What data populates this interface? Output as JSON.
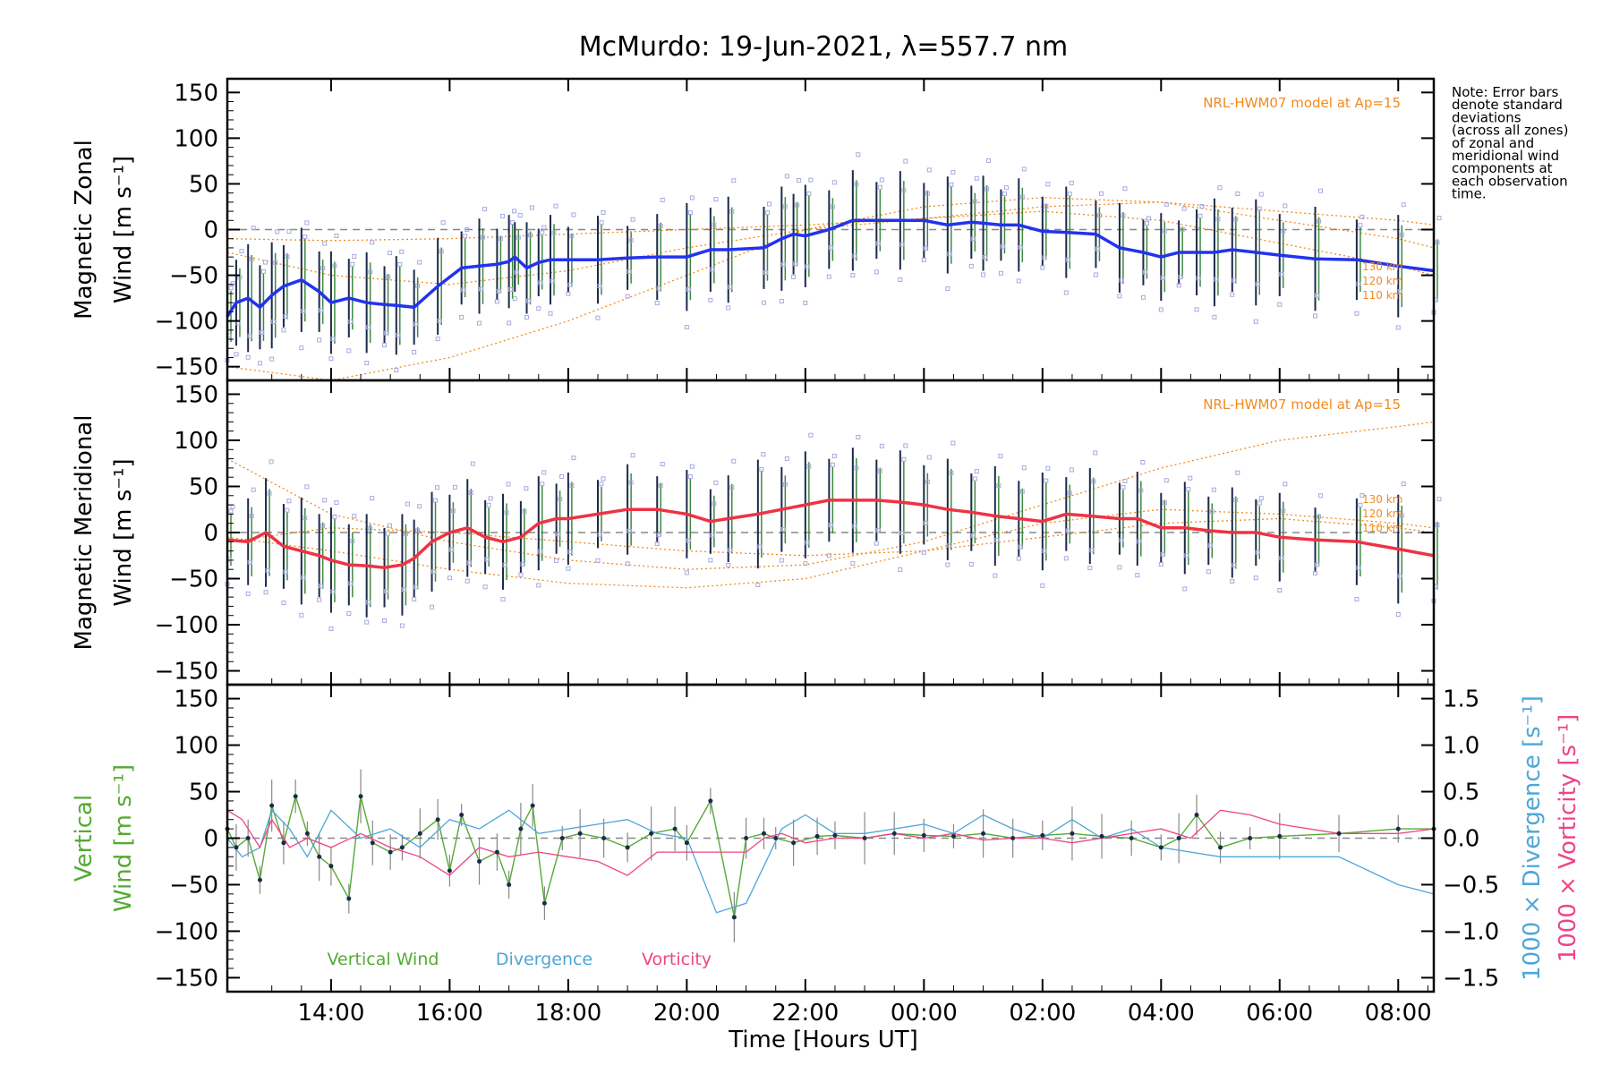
{
  "colors": {
    "zonal": "#2233ee",
    "meridional": "#ee3344",
    "vertical": "#55aa33",
    "divergence": "#4ea6d8",
    "vorticity": "#ee4488",
    "model": "#f28a1e",
    "zone_points": "#a8a8e0",
    "error_bar": "#1c2a4a"
  },
  "chart_data": {
    "type": "line",
    "title": "McMurdo: 19-Jun-2021, λ=557.7 nm",
    "xlabel": "Time [Hours UT]",
    "x_unit": "hours since 12:00 UT",
    "xlim": [
      0.25,
      20.6
    ],
    "x_ticks": [
      2,
      4,
      6,
      8,
      10,
      12,
      14,
      16,
      18,
      20
    ],
    "x_tick_labels": [
      "14:00",
      "16:00",
      "18:00",
      "20:00",
      "22:00",
      "00:00",
      "02:00",
      "04:00",
      "06:00",
      "08:00"
    ],
    "y_ticks": [
      -150,
      -100,
      -50,
      0,
      50,
      100,
      150
    ],
    "y_tick_labels": [
      "−150",
      "−100",
      "−50",
      "0",
      "50",
      "100",
      "150"
    ],
    "note": [
      "Note: Error bars",
      "denote standard",
      "deviations",
      "(across all zones)",
      "of zonal and",
      "meridional wind",
      "components at",
      "each observation",
      "time."
    ],
    "panels": [
      {
        "name": "zonal",
        "ylabel_line1": "Magnetic Zonal",
        "ylabel_line2": "Wind [m s⁻¹]",
        "ylim": [
          -165,
          165
        ],
        "model_label": "NRL-HWM07 model at Ap=15",
        "model_altitudes": [
          "130 km",
          "120 km",
          "110 km"
        ],
        "series": [
          {
            "name": "Magnetic Zonal Wind",
            "x": [
              0.25,
              0.4,
              0.6,
              0.8,
              1.0,
              1.2,
              1.5,
              1.8,
              2.0,
              2.3,
              2.6,
              2.9,
              3.1,
              3.4,
              3.8,
              4.2,
              4.5,
              4.8,
              5.0,
              5.1,
              5.3,
              5.5,
              5.7,
              6.0,
              6.5,
              7.0,
              7.5,
              8.0,
              8.4,
              8.7,
              9.3,
              9.6,
              9.8,
              10.0,
              10.4,
              10.8,
              11.2,
              11.6,
              12.0,
              12.4,
              12.8,
              13.0,
              13.3,
              13.6,
              14.0,
              14.4,
              14.9,
              15.3,
              15.7,
              16.0,
              16.3,
              16.6,
              16.9,
              17.2,
              17.6,
              18.0,
              18.6,
              19.3,
              20.0,
              20.6
            ],
            "y": [
              -95,
              -80,
              -75,
              -85,
              -72,
              -62,
              -55,
              -68,
              -80,
              -75,
              -80,
              -82,
              -83,
              -85,
              -62,
              -42,
              -40,
              -38,
              -35,
              -30,
              -42,
              -36,
              -33,
              -33,
              -33,
              -31,
              -30,
              -30,
              -22,
              -22,
              -20,
              -10,
              -5,
              -7,
              0,
              10,
              10,
              10,
              10,
              5,
              8,
              7,
              5,
              5,
              -2,
              -3,
              -5,
              -20,
              -25,
              -30,
              -25,
              -25,
              -25,
              -22,
              -25,
              -28,
              -32,
              -33,
              -40,
              -45
            ]
          },
          {
            "name": "NRL-HWM07 130 km",
            "x": [
              0.25,
              2,
              4,
              6,
              8,
              10,
              12,
              14,
              16,
              18,
              20,
              20.6
            ],
            "y": [
              -10,
              -12,
              -10,
              -5,
              0,
              5,
              12,
              25,
              30,
              20,
              10,
              5
            ]
          },
          {
            "name": "NRL-HWM07 120 km",
            "x": [
              0.25,
              2,
              4,
              6,
              8,
              10,
              12,
              14,
              16,
              18,
              20,
              20.6
            ],
            "y": [
              -25,
              -50,
              -60,
              -45,
              -20,
              0,
              12,
              20,
              10,
              -15,
              -40,
              -50
            ]
          },
          {
            "name": "NRL-HWM07 110 km",
            "x": [
              0.25,
              2,
              4,
              6,
              8,
              10,
              12,
              14,
              16,
              18,
              20,
              20.6
            ],
            "y": [
              -150,
              -165,
              -140,
              -100,
              -50,
              0,
              25,
              35,
              30,
              10,
              -10,
              -20
            ]
          }
        ]
      },
      {
        "name": "meridional",
        "ylabel_line1": "Magnetic Meridional",
        "ylabel_line2": "Wind [m s⁻¹]",
        "ylim": [
          -165,
          165
        ],
        "model_label": "NRL-HWM07 model at Ap=15",
        "model_altitudes": [
          "130 km",
          "120 km",
          "110 km"
        ],
        "series": [
          {
            "name": "Magnetic Meridional Wind",
            "x": [
              0.25,
              0.6,
              0.9,
              1.2,
              1.5,
              1.8,
              2.0,
              2.3,
              2.6,
              2.9,
              3.2,
              3.4,
              3.7,
              4.0,
              4.3,
              4.6,
              4.9,
              5.2,
              5.5,
              5.8,
              6.0,
              6.5,
              7.0,
              7.5,
              8.0,
              8.4,
              8.7,
              9.2,
              9.6,
              10.0,
              10.4,
              10.8,
              11.2,
              11.6,
              12.0,
              12.4,
              12.8,
              13.2,
              13.6,
              14.0,
              14.4,
              14.8,
              15.3,
              15.6,
              16.0,
              16.4,
              16.8,
              17.2,
              17.6,
              18.0,
              18.6,
              19.3,
              20.0,
              20.6
            ],
            "y": [
              -8,
              -10,
              0,
              -15,
              -20,
              -25,
              -30,
              -35,
              -36,
              -38,
              -35,
              -28,
              -10,
              0,
              5,
              -5,
              -10,
              -5,
              10,
              15,
              15,
              20,
              25,
              25,
              20,
              12,
              15,
              20,
              25,
              30,
              35,
              35,
              35,
              33,
              30,
              25,
              22,
              18,
              15,
              12,
              20,
              18,
              15,
              15,
              5,
              5,
              2,
              0,
              0,
              -5,
              -8,
              -10,
              -18,
              -25
            ]
          },
          {
            "name": "NRL-HWM07 130 km",
            "x": [
              0.25,
              2,
              4,
              6,
              8,
              10,
              12,
              14,
              16,
              18,
              20,
              20.6
            ],
            "y": [
              80,
              20,
              -10,
              -30,
              -40,
              -35,
              -10,
              30,
              70,
              100,
              115,
              120
            ]
          },
          {
            "name": "NRL-HWM07 120 km",
            "x": [
              0.25,
              2,
              4,
              6,
              8,
              10,
              12,
              14,
              16,
              18,
              20,
              20.6
            ],
            "y": [
              -5,
              -20,
              -40,
              -55,
              -60,
              -50,
              -20,
              10,
              25,
              20,
              10,
              5
            ]
          },
          {
            "name": "NRL-HWM07 110 km",
            "x": [
              0.25,
              2,
              4,
              6,
              8,
              10,
              12,
              14,
              16,
              18,
              20,
              20.6
            ],
            "y": [
              -10,
              5,
              0,
              -10,
              -20,
              -25,
              -20,
              -5,
              10,
              15,
              5,
              0
            ]
          }
        ]
      },
      {
        "name": "vertical",
        "ylabel_line1": "Vertical",
        "ylabel_line2": "Wind [m s⁻¹]",
        "ylim": [
          -165,
          165
        ],
        "right_axis": {
          "ylim": [
            -1.65,
            1.65
          ],
          "ticks": [
            -1.5,
            -1.0,
            -0.5,
            0.0,
            0.5,
            1.0,
            1.5
          ],
          "tick_labels": [
            "−1.5",
            "−1.0",
            "−0.5",
            "0.0",
            "0.5",
            "1.0",
            "1.5"
          ],
          "divergence_label": "1000 × Divergence [s⁻¹]",
          "vorticity_label": "1000 × Vorticity [s⁻¹]"
        },
        "legend": [
          "Vertical Wind",
          "Divergence",
          "Vorticity"
        ],
        "series": [
          {
            "name": "Vertical Wind",
            "x": [
              0.25,
              0.4,
              0.6,
              0.8,
              1.0,
              1.2,
              1.4,
              1.6,
              1.8,
              2.0,
              2.3,
              2.5,
              2.7,
              3.0,
              3.2,
              3.5,
              3.8,
              4.0,
              4.2,
              4.5,
              4.8,
              5.0,
              5.2,
              5.4,
              5.6,
              5.9,
              6.2,
              6.6,
              7.0,
              7.4,
              7.8,
              8.0,
              8.4,
              8.8,
              9.0,
              9.3,
              9.5,
              9.8,
              10.2,
              10.5,
              11.0,
              11.5,
              12.0,
              12.5,
              13.0,
              13.5,
              14.0,
              14.5,
              15.0,
              15.5,
              16.0,
              16.3,
              16.6,
              17.0,
              17.5,
              18.0,
              19.0,
              20.0,
              20.6
            ],
            "y": [
              10,
              -10,
              0,
              -45,
              35,
              -5,
              45,
              5,
              -20,
              -30,
              -65,
              45,
              -5,
              -15,
              -10,
              5,
              20,
              -35,
              25,
              -25,
              -15,
              -50,
              10,
              35,
              -70,
              0,
              5,
              0,
              -10,
              5,
              10,
              -5,
              40,
              -85,
              0,
              5,
              0,
              -5,
              2,
              3,
              0,
              5,
              3,
              2,
              5,
              0,
              3,
              5,
              2,
              0,
              -10,
              0,
              25,
              -10,
              0,
              2,
              5,
              10,
              10
            ]
          },
          {
            "name": "Divergence ×1000",
            "x": [
              0.25,
              0.5,
              0.8,
              1.0,
              1.3,
              1.6,
              2.0,
              2.5,
              3.0,
              3.5,
              4.0,
              4.5,
              5.0,
              5.5,
              6.0,
              6.5,
              7.0,
              7.5,
              8.0,
              8.5,
              9.0,
              9.3,
              9.6,
              10.0,
              10.5,
              11.0,
              11.5,
              12.0,
              12.5,
              13.0,
              13.5,
              14.0,
              14.5,
              15.0,
              15.5,
              16.0,
              16.5,
              17.0,
              17.5,
              18.0,
              19.0,
              20.0,
              20.6
            ],
            "y": [
              0.0,
              -0.2,
              -0.1,
              0.3,
              0.1,
              -0.2,
              0.3,
              0.0,
              0.1,
              -0.1,
              0.2,
              0.1,
              0.3,
              0.05,
              0.1,
              0.15,
              0.2,
              0.05,
              0.0,
              -0.8,
              -0.7,
              -0.3,
              0.1,
              0.25,
              0.05,
              0.05,
              0.1,
              0.15,
              0.05,
              0.25,
              0.1,
              0.0,
              0.2,
              0.0,
              0.1,
              -0.1,
              -0.15,
              -0.2,
              -0.2,
              -0.2,
              -0.2,
              -0.5,
              -0.6
            ]
          },
          {
            "name": "Vorticity ×1000",
            "x": [
              0.25,
              0.5,
              0.8,
              1.0,
              1.3,
              1.6,
              2.0,
              2.5,
              3.0,
              3.5,
              4.0,
              4.5,
              5.0,
              5.5,
              6.0,
              6.5,
              7.0,
              7.5,
              8.0,
              8.5,
              9.0,
              9.3,
              9.6,
              10.0,
              10.5,
              11.0,
              11.5,
              12.0,
              12.5,
              13.0,
              13.5,
              14.0,
              14.5,
              15.0,
              15.5,
              16.0,
              16.5,
              17.0,
              17.5,
              18.0,
              19.0,
              20.0,
              20.6
            ],
            "y": [
              0.3,
              0.2,
              -0.1,
              0.2,
              -0.1,
              0.0,
              -0.1,
              0.05,
              -0.1,
              -0.2,
              -0.4,
              -0.1,
              -0.2,
              -0.15,
              -0.2,
              -0.25,
              -0.4,
              -0.15,
              -0.15,
              -0.15,
              -0.15,
              0.0,
              0.05,
              -0.05,
              0.0,
              0.0,
              0.05,
              0.0,
              0.05,
              -0.02,
              0.0,
              0.0,
              -0.05,
              0.0,
              0.05,
              0.1,
              0.0,
              0.3,
              0.25,
              0.15,
              0.05,
              0.05,
              0.1
            ]
          }
        ]
      }
    ]
  }
}
